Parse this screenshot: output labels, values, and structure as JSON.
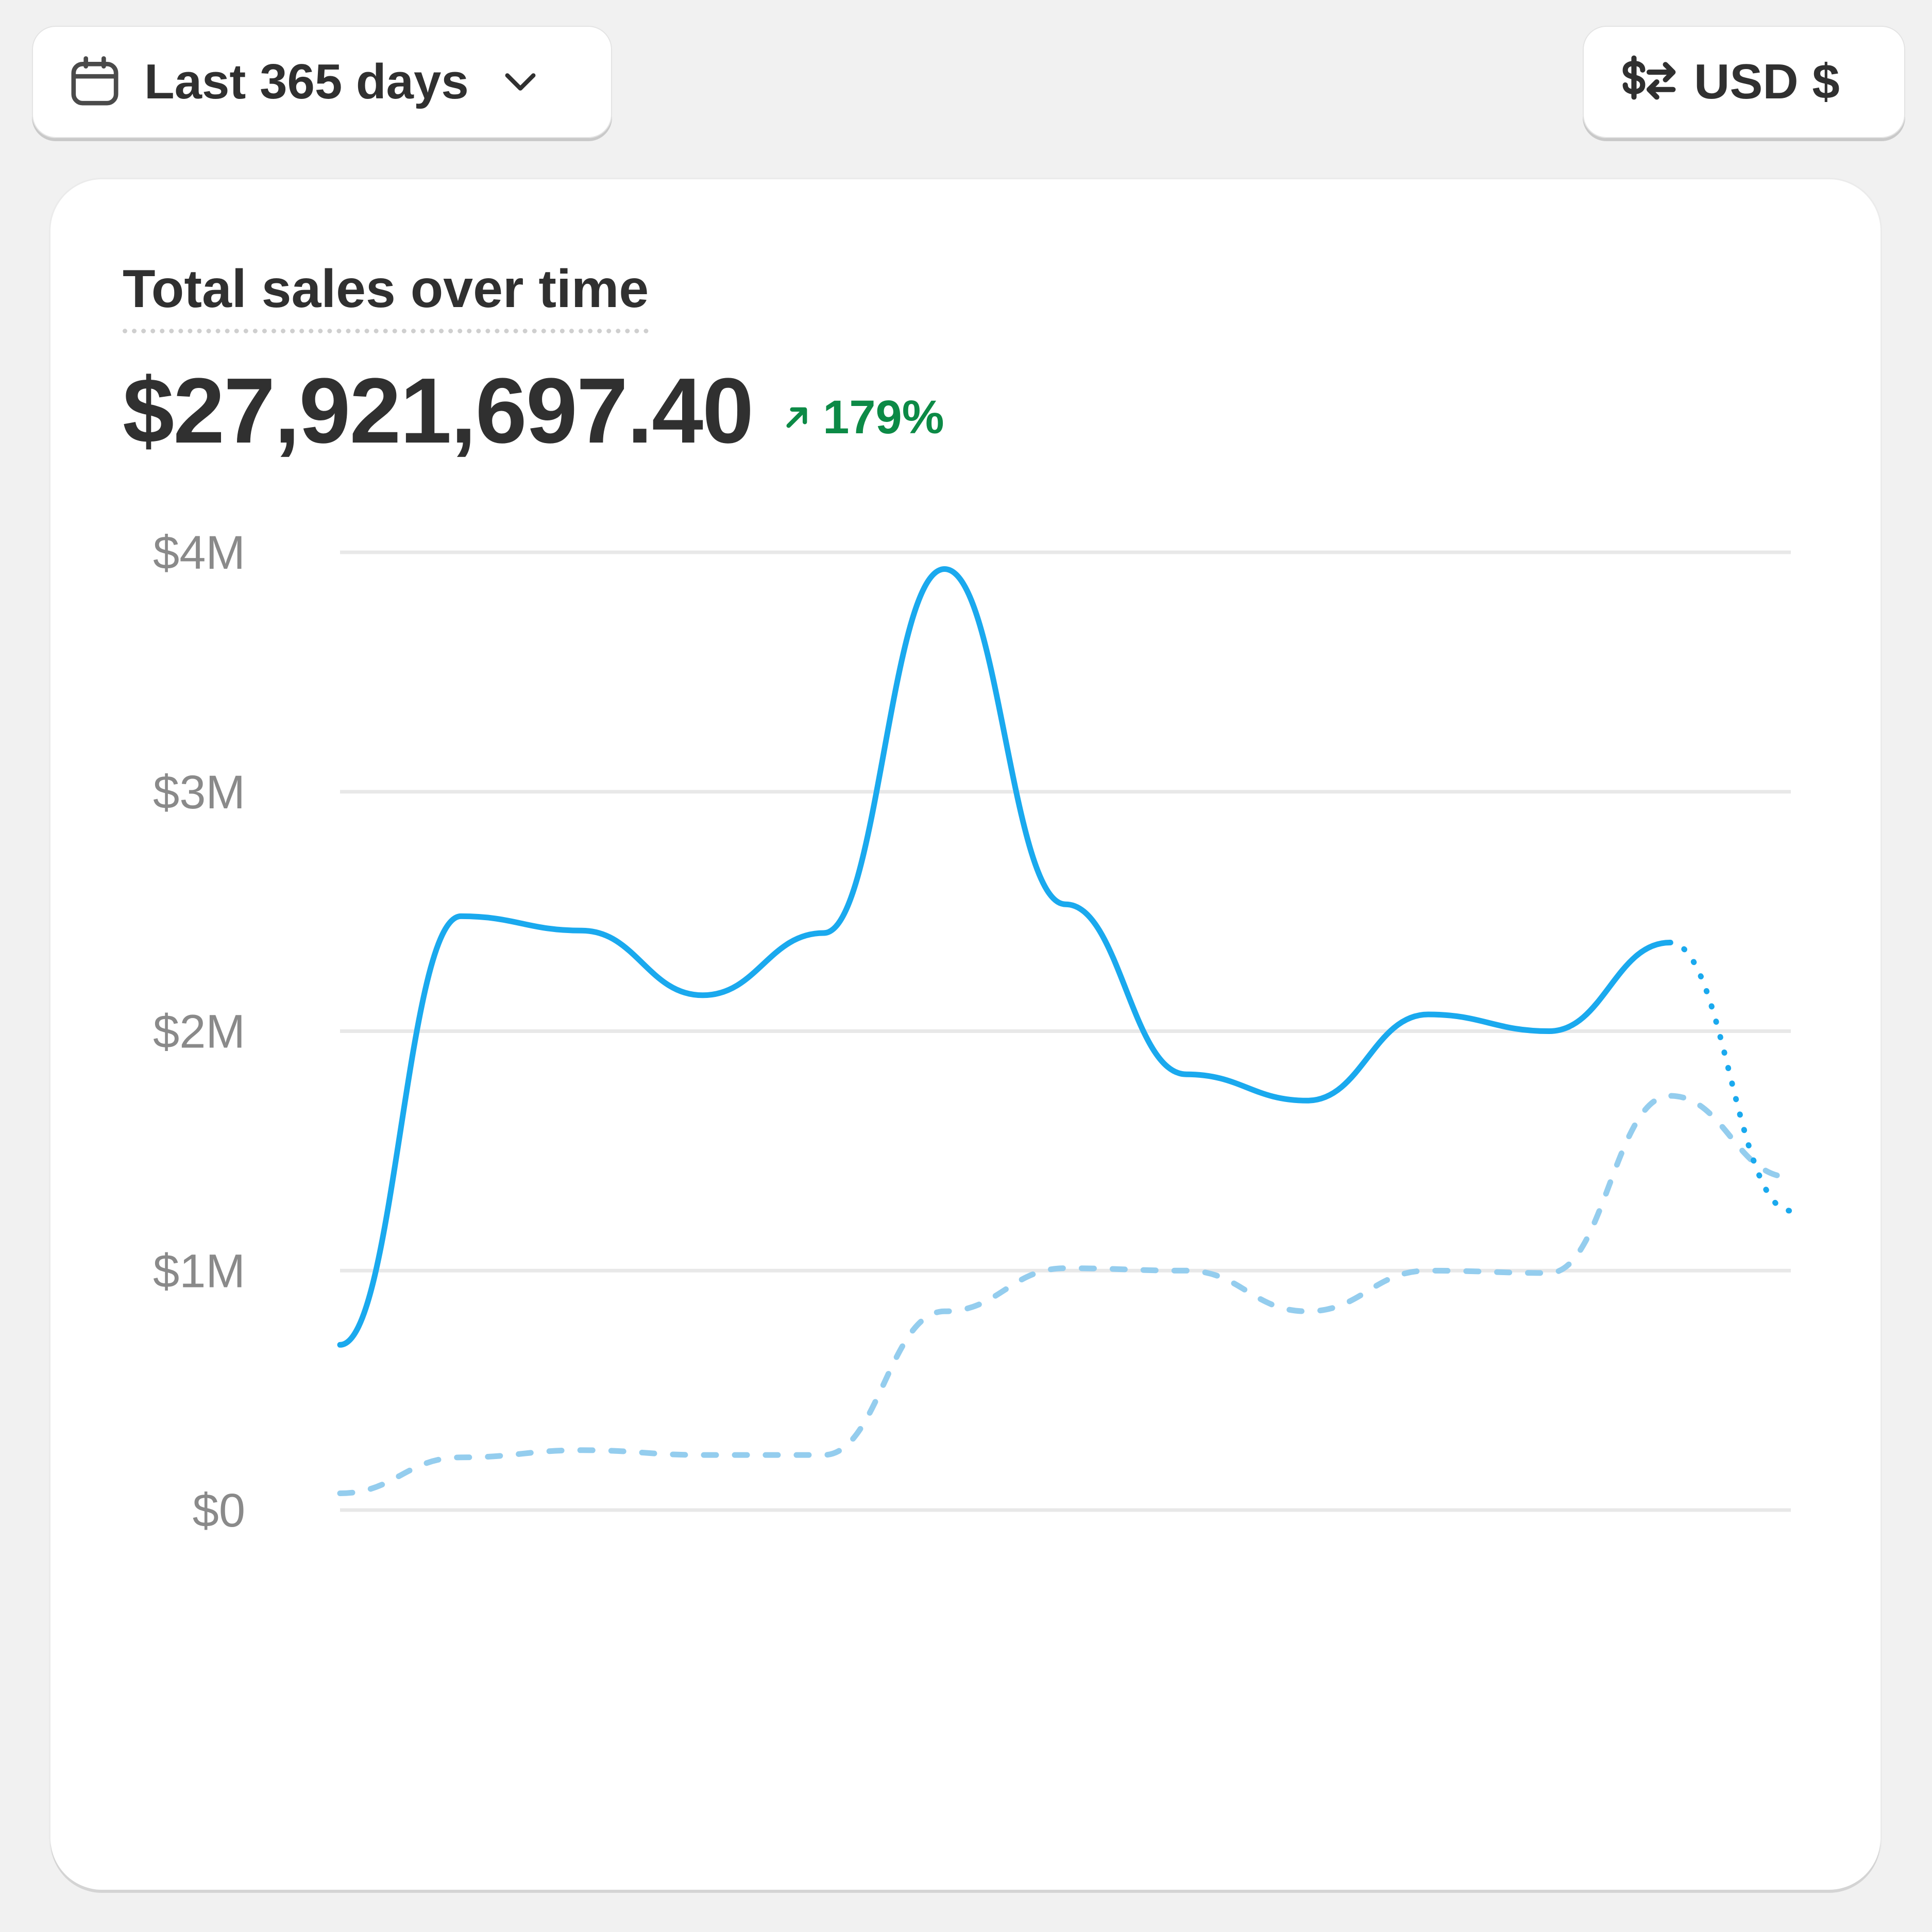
{
  "toolbar": {
    "date_range_label": "Last 365 days",
    "currency_label": "USD $"
  },
  "card": {
    "title": "Total sales over time",
    "total_value": "$27,921,697.40",
    "change_percent": "179%"
  },
  "colors": {
    "current_series": "#1aa9ee",
    "previous_series": "#94cdee",
    "positive_change": "#0c8a46"
  },
  "icons": {
    "date_button": "calendar-icon",
    "date_dropdown": "chevron-down-icon",
    "currency_button": "currency-exchange-icon",
    "change": "arrow-up-right-icon"
  },
  "chart_data": {
    "type": "line",
    "title": "",
    "xlabel": "",
    "ylabel": "",
    "ylim": [
      0,
      4000000
    ],
    "yticks": [
      0,
      1000000,
      2000000,
      3000000,
      4000000
    ],
    "ytick_labels": [
      "$0",
      "$1M",
      "$2M",
      "$3M",
      "$4M"
    ],
    "grid": true,
    "legend": "none",
    "series": [
      {
        "style": "solid",
        "projected_tail_style": "dotted",
        "values": [
          690000,
          2480000,
          2420000,
          2150000,
          2410000,
          3930000,
          2530000,
          1820000,
          1710000,
          2070000,
          2000000,
          2370000,
          1250000
        ]
      },
      {
        "style": "dashed",
        "values": [
          70000,
          220000,
          250000,
          230000,
          230000,
          830000,
          1010000,
          1000000,
          830000,
          1000000,
          990000,
          1730000,
          1390000
        ]
      }
    ]
  }
}
